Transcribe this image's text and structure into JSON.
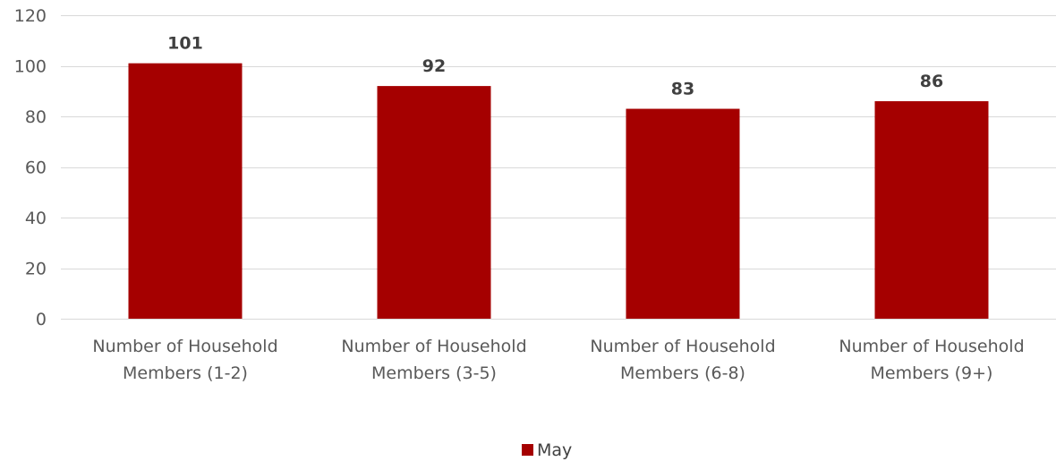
{
  "chart_data": {
    "type": "bar",
    "categories": [
      [
        "Number of Household",
        "Members (1-2)"
      ],
      [
        "Number of Household",
        "Members (3-5)"
      ],
      [
        "Number of Household",
        "Members (6-8)"
      ],
      [
        "Number of Household",
        "Members (9+)"
      ]
    ],
    "series": [
      {
        "name": "May",
        "values": [
          101,
          92,
          83,
          86
        ],
        "color": "#a50000"
      }
    ],
    "ylim": [
      0,
      120
    ],
    "yticks": [
      0,
      20,
      40,
      60,
      80,
      100,
      120
    ],
    "grid": true,
    "legend_position": "bottom",
    "title": "",
    "xlabel": "",
    "ylabel": ""
  }
}
